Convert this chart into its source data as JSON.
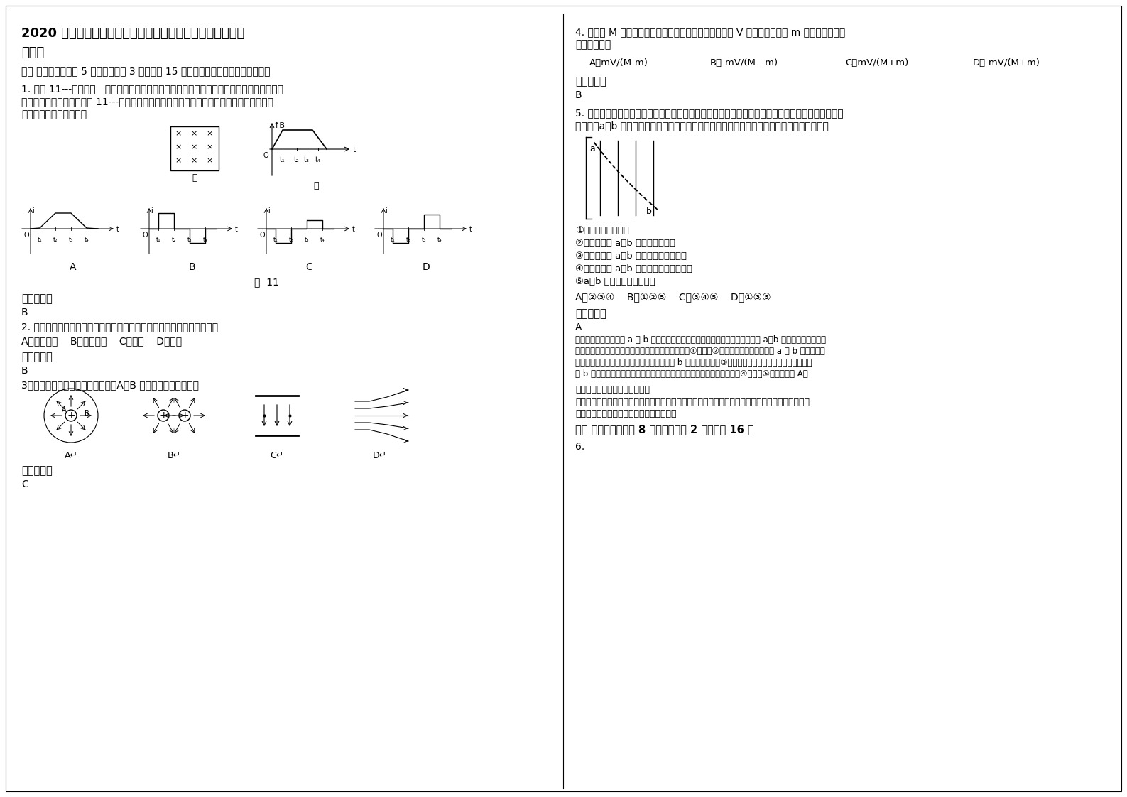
{
  "bg_color": "#ffffff",
  "title_bold": "2020 年浙江省金华市东阳横店中学高二物理上学期期末试题含解析",
  "title_line1": "2020 年浙江省金华市东阳横店中学高二物理上学期期末试题",
  "title_line2": "含解析",
  "sec1": "一、 选择题：本题共 5 小题，每小题 3 分，共计 15 分．每小题只有一个选项符合题意",
  "q1": "1. 如图 11---甲所示，   矩形线圈放在随时间变化的匀强磁场内，以垂直线圈平面向里的磁场",
  "q1b": "为正，磁场的变化情况如图 11---乙所示，规定线圈中逆时针方向的感应电流为正，则线圈中",
  "q1c": "感应电流的图象应为（）",
  "ref_ans": "参考答案：",
  "ans_B": "B",
  "q2": "2. 用油膜法测出分子直径后，要测阿伏加德罗常数，只要知道油滴的（）",
  "q2_opts": "A．摩尔质量    B．摩尔体积    C．体积    D．密度",
  "q3": "3．（单选）如图所示各种电场中，A、B 两点电场强度相同的是",
  "ans_C": "C",
  "q4": "4. 质量为 M 的原子核，原来处于静止状态，当它以速度 V 放出一个质量为 m 的粒子时，剩余",
  "q4b": "部分的速度为",
  "q4_A": "A．mV/(M-m)",
  "q4_B": "B．-mV/(M—m)",
  "q4_C": "C．mV/(M+m)",
  "q4_D": "D．-mV/(M+m)",
  "q5": "5. 如图所示，实线是一簇未标明方向的匀强电场的电场线，虚线是一带电粒子通过该电场区域时的运",
  "q5b": "动轨迹。a、b 是轨迹上的两点．若带电粒子在运动中只受电场力作用，则根据此图可以判断出",
  "q5_1": "①带电粒子所带电性",
  "q5_2": "②带电粒子在 a、b 两点的受力方向",
  "q5_3": "③带电粒子在 a、b 两点的速度何处较大",
  "q5_4": "④带电粒子在 a、b 两点的电势能何处较大",
  "q5_5": "⑤a、b 两点哪点的电势较高",
  "q5_opts": "A．②③④    B．①②⑤    C．③④⑤    D．①③⑤",
  "ans_A": "A",
  "analysis1": "试题分析：假定粒子由 a 到 b 运动；由图可知，粒子偏向右下方，则说明粒子在 a、b 两处所受的电场力同",
  "analysis2": "下，由于不知电场线方向，故无法判断粒子电性，故①错误，②正确；由图可知，粒子从 a 到 b 的过程中，",
  "analysis3": "电场力做正功，故说明粒子速度增大，故可知 b 处速度较大，故③正确；电场力做正功，则电势能减小，",
  "analysis4": "故 b 点电势能较小，但是不知道粒子的电性，故无法判断电势的高低，故④正确，⑤错误．故选 A。",
  "note1": "考点：带电粒子在电场中的运动",
  "note2": "【名师点睛】本题是电场中轨迹问题，关键要能根据轨迹弯曲方向判断出电场力的方向，掌握电场力",
  "note3": "做正功，电势能减小，判断电势能的大小。",
  "sec2": "二、 填空题：本题共 8 小题，每小题 2 分，共计 16 分",
  "q6": "6."
}
